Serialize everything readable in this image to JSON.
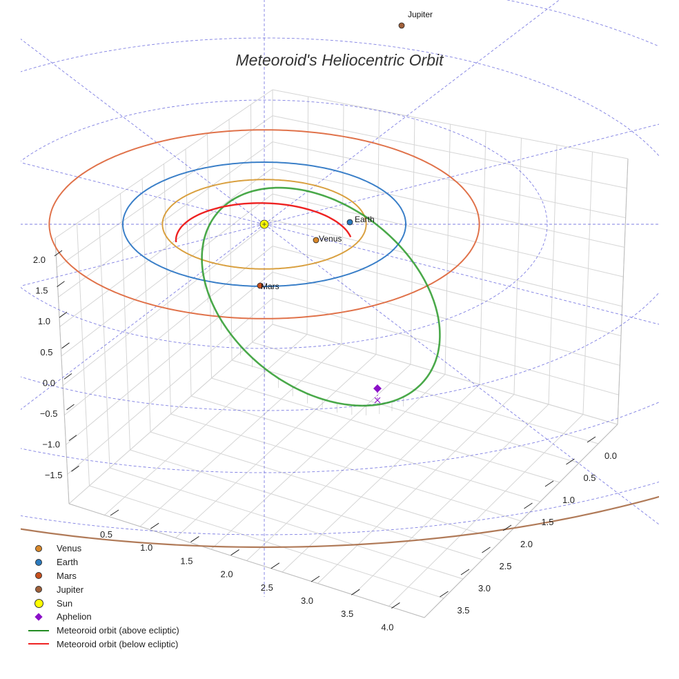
{
  "chart_data": {
    "type": "scatter",
    "subtype": "3d-orbit",
    "title": "Meteoroid's Heliocentric Orbit",
    "xlabel": "",
    "ylabel": "",
    "zlabel": "",
    "x_ticks": [
      "0.5",
      "1.0",
      "1.5",
      "2.0",
      "2.5",
      "3.0",
      "3.5",
      "4.0"
    ],
    "y_ticks": [
      "0.0",
      "0.5",
      "1.0",
      "1.5",
      "2.0",
      "2.5",
      "3.0",
      "3.5"
    ],
    "z_ticks": [
      "2.0",
      "1.5",
      "1.0",
      "0.5",
      "0.0",
      "−0.5",
      "−1.0",
      "−1.5"
    ],
    "grid": true,
    "planets": [
      {
        "name": "Venus",
        "orbit_radius_au": 0.72,
        "color": "#d9a040"
      },
      {
        "name": "Earth",
        "orbit_radius_au": 1.0,
        "color": "#3a7fc8"
      },
      {
        "name": "Mars",
        "orbit_radius_au": 1.52,
        "color": "#e0724a"
      },
      {
        "name": "Jupiter",
        "orbit_radius_au": 5.2,
        "color": "#b07a58"
      }
    ],
    "sun": {
      "name": "Sun",
      "color": "#ffff00"
    },
    "aphelion": {
      "name": "Aphelion",
      "color": "#8b10c8"
    },
    "orbit_series": [
      {
        "name": "Meteoroid orbit (above ecliptic)",
        "color": "#2a9a2a"
      },
      {
        "name": "Meteoroid orbit (below ecliptic)",
        "color": "#ee2222"
      }
    ],
    "legend_position": "bottom-left",
    "reference_grid_color": "#6666dd"
  },
  "legend": [
    {
      "label": "Venus",
      "kind": "dot",
      "color": "#d9882a"
    },
    {
      "label": "Earth",
      "kind": "dot",
      "color": "#2b7bbf"
    },
    {
      "label": "Mars",
      "kind": "dot",
      "color": "#c8501e"
    },
    {
      "label": "Jupiter",
      "kind": "dot",
      "color": "#a0603a"
    },
    {
      "label": "Sun",
      "kind": "sun",
      "color": "#ffff00"
    },
    {
      "label": "Aphelion",
      "kind": "diamond",
      "color": "#8b10c8"
    },
    {
      "label": "Meteoroid orbit (above ecliptic)",
      "kind": "line",
      "color": "#228B22"
    },
    {
      "label": "Meteoroid orbit (below ecliptic)",
      "kind": "line",
      "color": "#ee2222"
    }
  ]
}
